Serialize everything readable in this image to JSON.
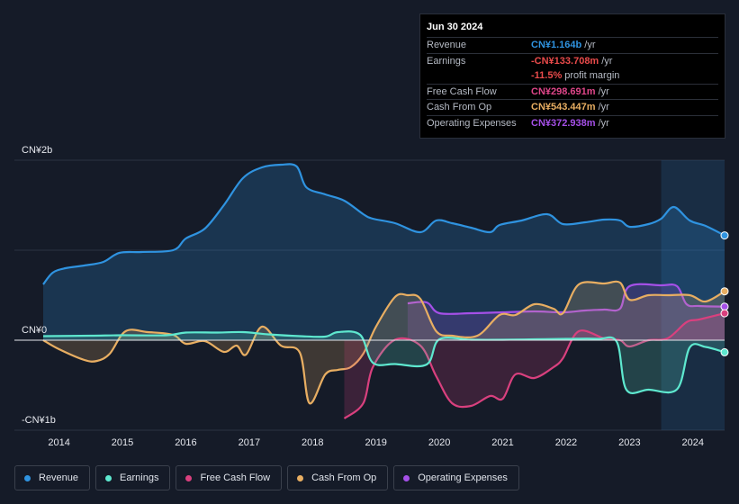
{
  "tooltip": {
    "date": "Jun 30 2024",
    "rows": [
      {
        "label": "Revenue",
        "value": "CN¥1.164b",
        "unit": "/yr",
        "color": "#2f93e0"
      },
      {
        "label": "Earnings",
        "value": "-CN¥133.708m",
        "unit": "/yr",
        "color": "#ea4b4b"
      },
      {
        "label": "",
        "value": "-11.5%",
        "unit": "profit margin",
        "color": "#ea4b4b"
      },
      {
        "label": "Free Cash Flow",
        "value": "CN¥298.691m",
        "unit": "/yr",
        "color": "#e0468a"
      },
      {
        "label": "Cash From Op",
        "value": "CN¥543.447m",
        "unit": "/yr",
        "color": "#e8ae62"
      },
      {
        "label": "Operating Expenses",
        "value": "CN¥372.938m",
        "unit": "/yr",
        "color": "#a550e8"
      }
    ]
  },
  "legend": [
    {
      "label": "Revenue",
      "color": "#2f93e0"
    },
    {
      "label": "Earnings",
      "color": "#5ee8cf"
    },
    {
      "label": "Free Cash Flow",
      "color": "#d9407e"
    },
    {
      "label": "Cash From Op",
      "color": "#e8ae62"
    },
    {
      "label": "Operating Expenses",
      "color": "#a550e8"
    }
  ],
  "chart_data": {
    "type": "line",
    "title": "",
    "xlabel": "",
    "ylabel": "",
    "y_tick_labels": [
      {
        "value": 2000,
        "label": "CN¥2b"
      },
      {
        "value": 0,
        "label": "CN¥0"
      },
      {
        "value": -1000,
        "label": "-CN¥1b"
      }
    ],
    "ylim": [
      -1000,
      2000
    ],
    "xlim": [
      2013.75,
      2024.5
    ],
    "x_tick_labels": [
      "2014",
      "2015",
      "2016",
      "2017",
      "2018",
      "2019",
      "2020",
      "2021",
      "2022",
      "2023",
      "2024"
    ],
    "x_ticks": [
      2014,
      2015,
      2016,
      2017,
      2018,
      2019,
      2020,
      2021,
      2022,
      2023,
      2024
    ],
    "highlight_start": 2023.5,
    "series": [
      {
        "name": "Revenue",
        "color": "#2f93e0",
        "fill": true,
        "x": [
          2013.75,
          2013.9,
          2014.1,
          2014.4,
          2014.7,
          2014.95,
          2015.3,
          2015.8,
          2016.0,
          2016.3,
          2016.6,
          2016.9,
          2017.2,
          2017.5,
          2017.75,
          2017.9,
          2018.2,
          2018.5,
          2018.8,
          2018.95,
          2019.3,
          2019.7,
          2019.95,
          2020.2,
          2020.5,
          2020.8,
          2020.95,
          2021.3,
          2021.7,
          2021.95,
          2022.3,
          2022.6,
          2022.85,
          2023.0,
          2023.3,
          2023.5,
          2023.7,
          2023.95,
          2024.2,
          2024.5
        ],
        "y": [
          620,
          750,
          800,
          830,
          870,
          970,
          980,
          1000,
          1130,
          1240,
          1500,
          1800,
          1920,
          1950,
          1930,
          1700,
          1620,
          1550,
          1400,
          1350,
          1300,
          1200,
          1330,
          1300,
          1250,
          1200,
          1280,
          1330,
          1400,
          1290,
          1310,
          1340,
          1330,
          1260,
          1290,
          1350,
          1480,
          1330,
          1270,
          1164
        ]
      },
      {
        "name": "Earnings",
        "color": "#5ee8cf",
        "fill": true,
        "x": [
          2013.75,
          2014.5,
          2015.0,
          2015.7,
          2016.0,
          2016.5,
          2016.9,
          2017.3,
          2017.8,
          2018.2,
          2018.4,
          2018.75,
          2018.95,
          2019.3,
          2019.8,
          2020.0,
          2020.5,
          2021.0,
          2021.5,
          2022.0,
          2022.5,
          2022.8,
          2022.95,
          2023.3,
          2023.75,
          2023.95,
          2024.2,
          2024.5
        ],
        "y": [
          45,
          50,
          55,
          55,
          85,
          85,
          90,
          65,
          45,
          40,
          90,
          60,
          -250,
          -265,
          -270,
          10,
          5,
          5,
          10,
          15,
          15,
          -20,
          -550,
          -550,
          -545,
          -80,
          -75,
          -134
        ]
      },
      {
        "name": "Free Cash Flow",
        "color": "#d9407e",
        "fill": true,
        "x": [
          2018.5,
          2018.8,
          2018.95,
          2019.3,
          2019.7,
          2019.95,
          2020.2,
          2020.5,
          2020.8,
          2021.0,
          2021.2,
          2021.5,
          2021.8,
          2021.95,
          2022.2,
          2022.6,
          2022.85,
          2023.0,
          2023.3,
          2023.6,
          2023.9,
          2024.1,
          2024.5
        ],
        "y": [
          -870,
          -700,
          -300,
          5,
          -60,
          -400,
          -700,
          -730,
          -620,
          -650,
          -380,
          -420,
          -300,
          -200,
          100,
          20,
          0,
          -70,
          0,
          20,
          200,
          230,
          299
        ]
      },
      {
        "name": "Cash From Op",
        "color": "#e8ae62",
        "fill": true,
        "x": [
          2013.75,
          2014.0,
          2014.4,
          2014.6,
          2014.8,
          2015.05,
          2015.4,
          2015.8,
          2016.0,
          2016.3,
          2016.6,
          2016.8,
          2016.95,
          2017.2,
          2017.5,
          2017.8,
          2017.95,
          2018.2,
          2018.4,
          2018.6,
          2018.8,
          2019.0,
          2019.3,
          2019.5,
          2019.7,
          2019.95,
          2020.2,
          2020.6,
          2020.95,
          2021.2,
          2021.5,
          2021.8,
          2021.95,
          2022.2,
          2022.6,
          2022.85,
          2023.0,
          2023.3,
          2023.6,
          2023.95,
          2024.2,
          2024.5
        ],
        "y": [
          0,
          -100,
          -220,
          -230,
          -150,
          100,
          90,
          60,
          -40,
          -10,
          -130,
          -60,
          -160,
          150,
          -60,
          -140,
          -700,
          -380,
          -330,
          -300,
          -150,
          150,
          480,
          500,
          460,
          100,
          50,
          50,
          280,
          280,
          400,
          350,
          300,
          620,
          630,
          640,
          450,
          500,
          500,
          500,
          430,
          543
        ]
      },
      {
        "name": "Operating Expenses",
        "color": "#a550e8",
        "fill": true,
        "x": [
          2019.5,
          2019.8,
          2020.0,
          2020.5,
          2021.0,
          2021.5,
          2021.95,
          2022.3,
          2022.6,
          2022.85,
          2023.0,
          2023.5,
          2023.75,
          2023.9,
          2024.1,
          2024.5
        ],
        "y": [
          410,
          420,
          300,
          300,
          310,
          320,
          310,
          330,
          340,
          350,
          600,
          610,
          600,
          400,
          380,
          373
        ]
      }
    ]
  }
}
